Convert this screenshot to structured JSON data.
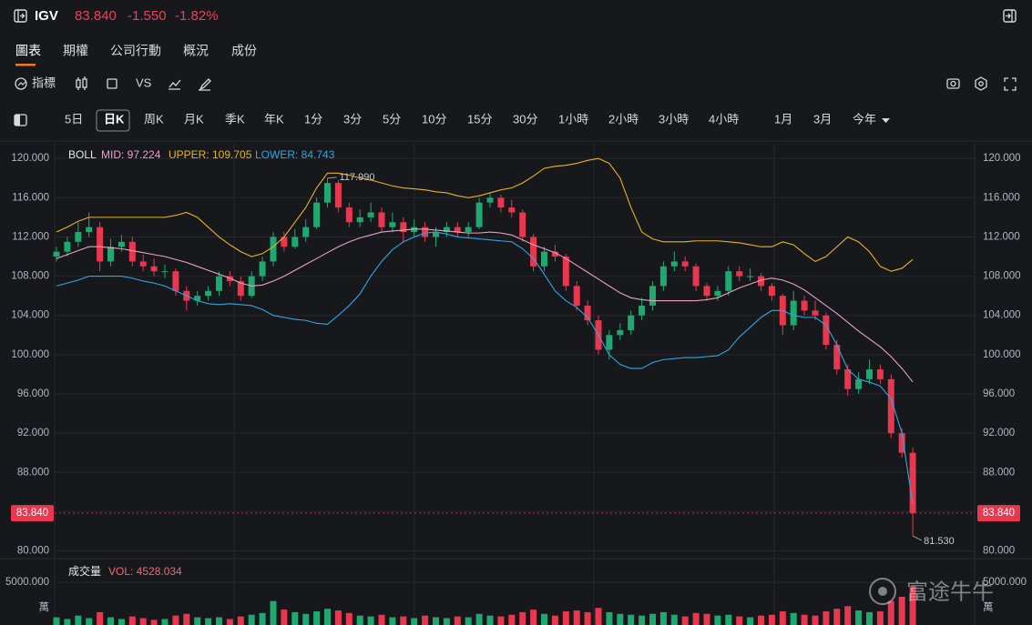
{
  "header": {
    "symbol": "IGV",
    "price": "83.840",
    "change": "-1.550",
    "change_pct": "-1.82%"
  },
  "tabs": [
    "圖表",
    "期權",
    "公司行動",
    "概況",
    "成份"
  ],
  "tools": [
    "指標",
    "VS"
  ],
  "periods": [
    "5日",
    "日K",
    "周K",
    "月K",
    "季K",
    "年K",
    "1分",
    "3分",
    "5分",
    "10分",
    "15分",
    "30分",
    "1小時",
    "2小時",
    "3小時",
    "4小時",
    "1月",
    "3月",
    "今年"
  ],
  "watermark": "富途牛牛",
  "chart_data": {
    "type": "candlestick",
    "indicator": "BOLL",
    "up_color": "#1fa971",
    "down_color": "#e8384f",
    "ylim": [
      79.4,
      121.5
    ],
    "yticks": [
      {
        "value": 80,
        "label": "80.000"
      },
      {
        "value": 84,
        "label": "84.000"
      },
      {
        "value": 88,
        "label": "88.000"
      },
      {
        "value": 92,
        "label": "92.000"
      },
      {
        "value": 96,
        "label": "96.000"
      },
      {
        "value": 100,
        "label": "100.000"
      },
      {
        "value": 104,
        "label": "104.000"
      },
      {
        "value": 108,
        "label": "108.000"
      },
      {
        "value": 112,
        "label": "112.000"
      },
      {
        "value": 116,
        "label": "116.000"
      },
      {
        "value": 120,
        "label": "120.000"
      }
    ],
    "candles": [
      [
        110,
        111,
        109.5,
        110.5
      ],
      [
        110.5,
        112,
        110,
        111.5
      ],
      [
        111.5,
        113.5,
        111,
        112.5
      ],
      [
        112.5,
        114.5,
        112,
        113
      ],
      [
        113,
        113.5,
        108.5,
        109.5
      ],
      [
        109.5,
        111.8,
        109,
        111
      ],
      [
        111,
        112.2,
        110.5,
        111.5
      ],
      [
        111.5,
        112,
        109,
        109.5
      ],
      [
        109.5,
        110.2,
        108.5,
        109
      ],
      [
        109,
        109.8,
        108,
        108.5
      ],
      [
        108.5,
        109.2,
        107.8,
        108.5
      ],
      [
        108.5,
        108.8,
        106,
        106.5
      ],
      [
        106.5,
        107,
        104.5,
        105.5
      ],
      [
        105.5,
        106.5,
        105,
        106
      ],
      [
        106,
        107,
        105.5,
        106.5
      ],
      [
        106.5,
        108.5,
        106,
        108
      ],
      [
        108,
        108.5,
        107,
        107.5
      ],
      [
        107.5,
        108,
        105.5,
        106
      ],
      [
        106,
        108.5,
        105.8,
        108
      ],
      [
        108,
        110,
        107.5,
        109.5
      ],
      [
        109.5,
        112.5,
        109,
        112
      ],
      [
        112,
        112.5,
        110.5,
        111
      ],
      [
        111,
        112.8,
        110.8,
        112
      ],
      [
        112,
        113.8,
        111.5,
        113
      ],
      [
        113,
        116,
        112.8,
        115.5
      ],
      [
        115.5,
        117.99,
        115,
        117.5
      ],
      [
        117.5,
        117.8,
        114.5,
        115
      ],
      [
        115,
        115.5,
        113,
        113.5
      ],
      [
        113.5,
        114.8,
        113,
        114
      ],
      [
        114,
        115.5,
        113.5,
        114.5
      ],
      [
        114.5,
        115,
        112.5,
        113
      ],
      [
        113,
        114.5,
        112.5,
        113.5
      ],
      [
        113.5,
        114,
        111.5,
        112.5
      ],
      [
        112.5,
        113.8,
        112,
        113
      ],
      [
        113,
        113.5,
        111.5,
        112
      ],
      [
        112,
        113,
        111,
        112.5
      ],
      [
        112.5,
        113.5,
        112,
        113
      ],
      [
        113,
        113.5,
        112,
        112.5
      ],
      [
        112.5,
        113.5,
        112,
        113
      ],
      [
        113,
        116,
        112.8,
        115.5
      ],
      [
        115.5,
        116.5,
        115,
        116
      ],
      [
        116,
        116.3,
        114.5,
        115
      ],
      [
        115,
        115.8,
        114,
        114.5
      ],
      [
        114.5,
        114.8,
        111.5,
        112
      ],
      [
        112,
        112.3,
        108.5,
        109
      ],
      [
        109,
        111,
        108.5,
        110.5
      ],
      [
        110.5,
        111.2,
        109.5,
        110
      ],
      [
        110,
        110.3,
        106.5,
        107
      ],
      [
        107,
        107.5,
        104.5,
        105
      ],
      [
        105,
        105.5,
        103,
        103.5
      ],
      [
        103.5,
        104,
        100,
        100.5
      ],
      [
        100.5,
        102.5,
        99.5,
        102
      ],
      [
        102,
        103.2,
        101.5,
        102.5
      ],
      [
        102.5,
        104.5,
        102,
        104
      ],
      [
        104,
        105.8,
        103.5,
        105
      ],
      [
        105,
        107.5,
        104.5,
        107
      ],
      [
        107,
        109.5,
        106.5,
        109
      ],
      [
        109,
        110.5,
        108.5,
        109.5
      ],
      [
        109.5,
        110,
        108.5,
        109
      ],
      [
        109,
        109.3,
        106.5,
        107
      ],
      [
        107,
        107.3,
        105.5,
        106
      ],
      [
        106,
        107,
        105.5,
        106.5
      ],
      [
        106.5,
        109,
        106,
        108.5
      ],
      [
        108.5,
        109,
        107.5,
        108
      ],
      [
        108,
        108.8,
        107.5,
        108
      ],
      [
        108,
        108.3,
        106.5,
        107
      ],
      [
        107,
        107.3,
        105.5,
        106
      ],
      [
        106,
        106.2,
        102,
        103
      ],
      [
        103,
        106.5,
        102.5,
        105.5
      ],
      [
        105.5,
        106,
        104,
        104.5
      ],
      [
        104.5,
        105.5,
        103.5,
        104
      ],
      [
        104,
        104.3,
        100.5,
        101
      ],
      [
        101,
        101.5,
        98,
        98.5
      ],
      [
        98.5,
        99,
        95.8,
        96.5
      ],
      [
        96.5,
        98.2,
        96,
        97.5
      ],
      [
        97.5,
        99.5,
        97,
        98.5
      ],
      [
        98.5,
        99,
        97,
        97.5
      ],
      [
        97.5,
        98,
        91.5,
        92
      ],
      [
        92,
        92.5,
        89.5,
        90
      ],
      [
        90,
        90.5,
        81.53,
        83.84
      ]
    ],
    "series": [
      {
        "label": "UPPER: 109.705",
        "color": "#e6b422",
        "values": [
          112.5,
          113,
          113.6,
          114,
          114,
          114,
          114,
          114,
          114,
          114,
          114,
          114.2,
          114.5,
          114,
          113,
          112,
          111.2,
          110.5,
          110,
          110.3,
          111,
          112,
          113.5,
          115,
          117,
          118.5,
          118.5,
          118.3,
          118,
          117.8,
          117.5,
          117.2,
          117,
          116.9,
          116.8,
          116.6,
          116.5,
          116.2,
          116,
          116.2,
          116.5,
          116.8,
          117,
          117.5,
          118.2,
          119,
          119.2,
          119.3,
          119.5,
          119.8,
          120,
          119.5,
          118,
          115,
          112.5,
          111.8,
          111.5,
          111.5,
          111.5,
          111.6,
          111.6,
          111.6,
          111.5,
          111.4,
          111.2,
          111,
          111,
          111.5,
          111.2,
          110.3,
          109.5,
          110,
          111,
          112,
          111.5,
          110.5,
          109,
          108.5,
          108.8,
          109.705
        ]
      },
      {
        "label": "MID: 97.224",
        "color": "#e8a3c0",
        "values": [
          109.8,
          110.2,
          110.6,
          111,
          111,
          110.9,
          110.8,
          110.6,
          110.4,
          110.2,
          110,
          109.7,
          109.4,
          109,
          108.6,
          108.2,
          107.8,
          107.3,
          107,
          107.1,
          107.5,
          108,
          108.6,
          109.2,
          109.8,
          110.4,
          111,
          111.5,
          111.9,
          112.2,
          112.5,
          112.6,
          112.7,
          112.8,
          112.8,
          112.7,
          112.6,
          112.5,
          112.4,
          112.4,
          112.5,
          112.4,
          112.2,
          111.7,
          111.2,
          110.8,
          110.4,
          109.8,
          109.1,
          108.4,
          107.7,
          107,
          106.3,
          105.8,
          105.6,
          105.5,
          105.5,
          105.5,
          105.5,
          105.5,
          105.6,
          105.8,
          106.3,
          106.8,
          107.2,
          107.6,
          107.8,
          107.6,
          107.2,
          106.6,
          105.8,
          105,
          104.2,
          103.3,
          102.4,
          101.6,
          100.8,
          99.8,
          98.6,
          97.224
        ]
      },
      {
        "label": "LOWER: 84.743",
        "color": "#2fa7e0",
        "values": [
          107,
          107.3,
          107.6,
          108,
          108,
          108,
          108,
          107.8,
          107.5,
          107.3,
          107,
          106.5,
          106,
          105.5,
          105.2,
          105.1,
          105.2,
          105.1,
          105,
          104.6,
          104,
          103.8,
          103.6,
          103.5,
          103.2,
          103.1,
          104,
          105,
          106.2,
          108,
          109.5,
          110.7,
          111.5,
          112,
          112.4,
          112.5,
          112.3,
          112,
          111.9,
          111.8,
          111.7,
          111.6,
          111.5,
          110.8,
          109.8,
          108.2,
          106.5,
          105.5,
          104.8,
          103.8,
          102,
          100,
          99,
          98.6,
          98.6,
          99.2,
          99.5,
          99.6,
          99.7,
          99.7,
          99.8,
          99.9,
          100.5,
          101.8,
          102.8,
          103.8,
          104.5,
          104.5,
          104,
          103.8,
          103.8,
          103,
          101,
          98.5,
          97.5,
          97.2,
          96.8,
          95.5,
          92,
          84.743
        ]
      }
    ],
    "high_annotation": {
      "value": 117.99,
      "label": "117.990"
    },
    "low_annotation": {
      "value": 81.53,
      "label": "81.530"
    },
    "last_price": {
      "value": 83.84,
      "label": "83.840"
    },
    "volume": {
      "title": "成交量",
      "legend": "VOL: 4528.034",
      "unit": "萬",
      "ylim": [
        0,
        5000
      ],
      "yticks": [
        {
          "value": 5000,
          "label": "5000.000"
        }
      ],
      "values": [
        900,
        700,
        1100,
        800,
        1500,
        900,
        700,
        1000,
        800,
        600,
        700,
        1100,
        1300,
        900,
        800,
        900,
        700,
        1000,
        1200,
        1400,
        2800,
        1800,
        1500,
        1300,
        1600,
        1900,
        1700,
        1400,
        1100,
        1000,
        1200,
        900,
        1000,
        800,
        1100,
        900,
        800,
        1000,
        900,
        1300,
        1100,
        1000,
        1200,
        1500,
        1800,
        1300,
        1100,
        1600,
        1700,
        1500,
        2000,
        1500,
        1300,
        1200,
        1100,
        1300,
        1500,
        1200,
        1000,
        1400,
        1300,
        1100,
        1200,
        1000,
        900,
        1100,
        1200,
        1600,
        1400,
        1200,
        1100,
        1600,
        1900,
        2200,
        1700,
        1500,
        1600,
        2800,
        3300,
        4528.034
      ]
    }
  }
}
